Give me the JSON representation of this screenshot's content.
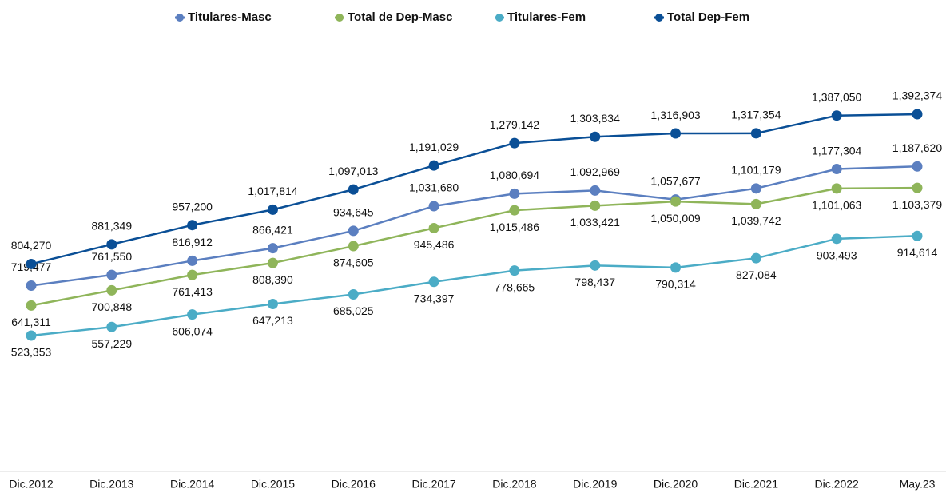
{
  "chart_data": {
    "type": "line",
    "categories": [
      "Dic.2012",
      "Dic.2013",
      "Dic.2014",
      "Dic.2015",
      "Dic.2016",
      "Dic.2017",
      "Dic.2018",
      "Dic.2019",
      "Dic.2020",
      "Dic.2021",
      "Dic.2022",
      "May.23"
    ],
    "legend": "top",
    "series": [
      {
        "name": "Titulares-Masc",
        "color": "#5b7fc0",
        "values": [
          719477,
          761550,
          816912,
          866421,
          934645,
          1031680,
          1080694,
          1092969,
          1057677,
          1101179,
          1177304,
          1187620
        ],
        "value_labels": [
          "719,477",
          "761,550",
          "816,912",
          "866,421",
          "934,645",
          "1,031,680",
          "1,080,694",
          "1,092,969",
          "1,057,677",
          "1,101,179",
          "1,177,304",
          "1,187,620"
        ]
      },
      {
        "name": "Total de Dep-Masc",
        "color": "#8fb55a",
        "values": [
          641311,
          700848,
          761413,
          808390,
          874605,
          945486,
          1015486,
          1033421,
          1050009,
          1039742,
          1101063,
          1103379
        ],
        "value_labels": [
          "641,311",
          "700,848",
          "761,413",
          "808,390",
          "874,605",
          "945,486",
          "1,015,486",
          "1,033,421",
          "1,050,009",
          "1,039,742",
          "1,101,063",
          "1,103,379"
        ]
      },
      {
        "name": "Titulares-Fem",
        "color": "#4bacc6",
        "values": [
          523353,
          557229,
          606074,
          647213,
          685025,
          734397,
          778665,
          798437,
          790314,
          827084,
          903493,
          914614
        ],
        "value_labels": [
          "523,353",
          "557,229",
          "606,074",
          "647,213",
          "685,025",
          "734,397",
          "778,665",
          "798,437",
          "790,314",
          "827,084",
          "903,493",
          "914,614"
        ]
      },
      {
        "name": "Total Dep-Fem",
        "color": "#0a4f96",
        "values": [
          804270,
          881349,
          957200,
          1017814,
          1097013,
          1191029,
          1279142,
          1303834,
          1316903,
          1317354,
          1387050,
          1392374
        ],
        "value_labels": [
          "804,270",
          "881,349",
          "957,200",
          "1,017,814",
          "1,097,013",
          "1,191,029",
          "1,279,142",
          "1,303,834",
          "1,316,903",
          "1,317,354",
          "1,387,050",
          "1,392,374"
        ]
      }
    ]
  }
}
